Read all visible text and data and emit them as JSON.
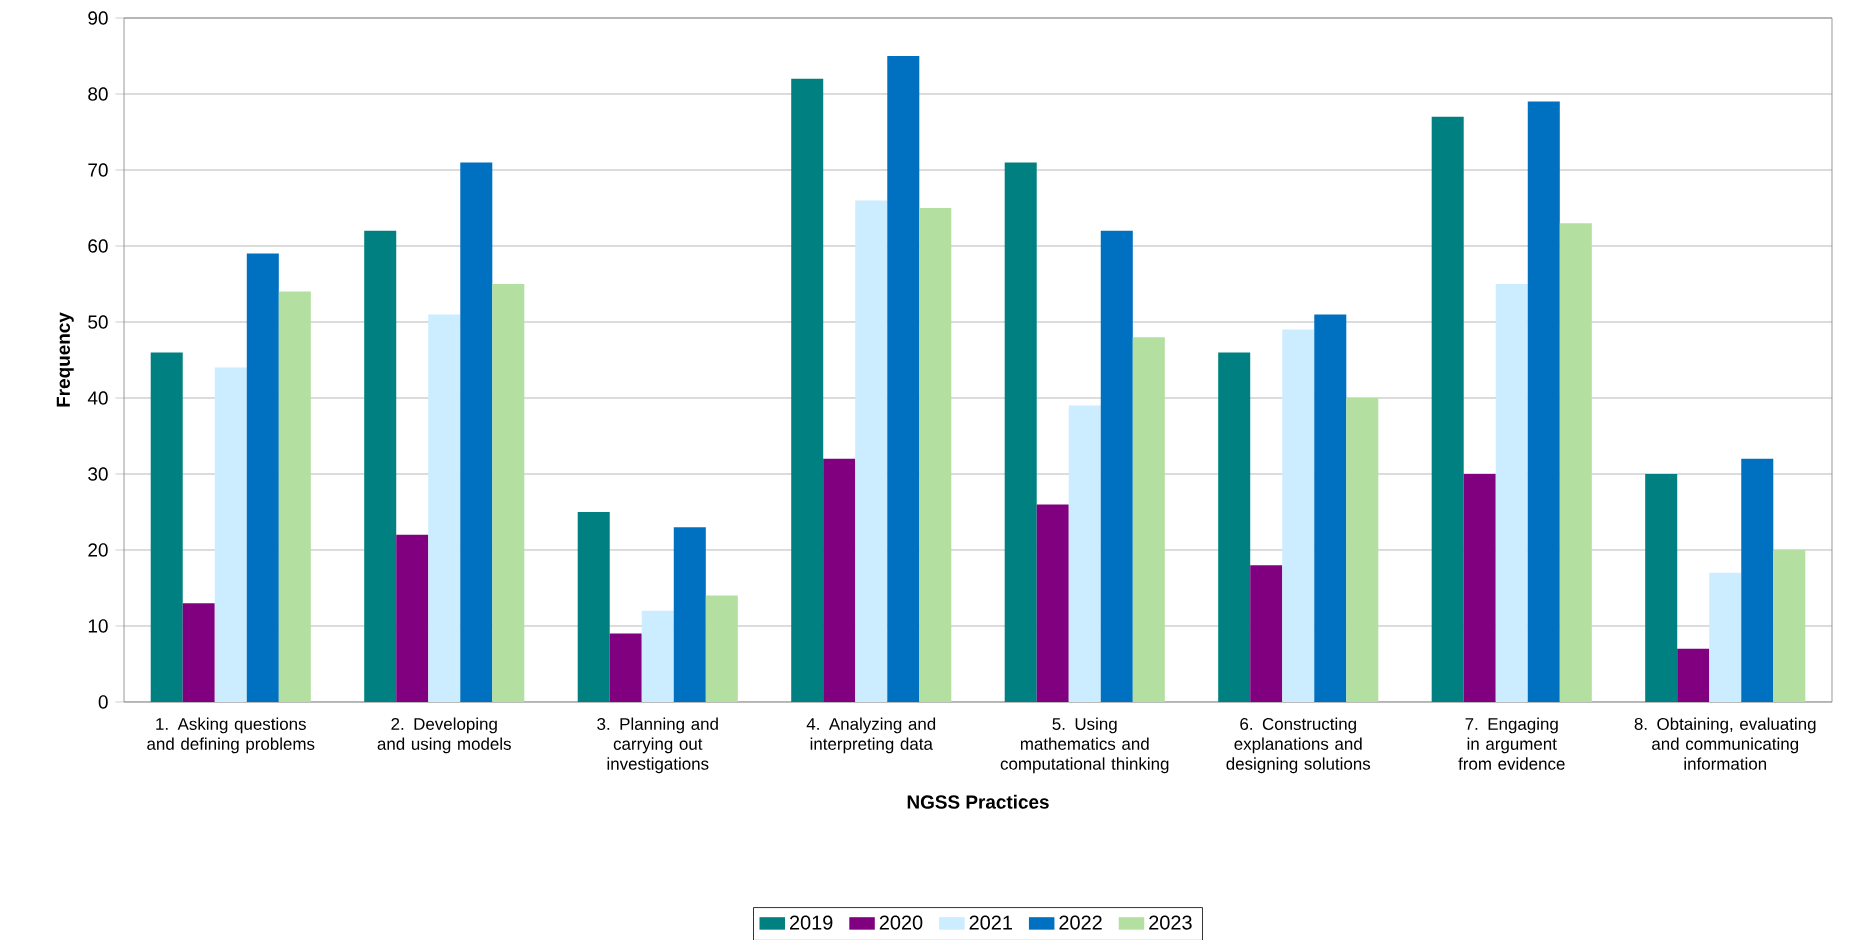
{
  "chart_data": {
    "type": "bar",
    "xlabel": "NGSS Practices",
    "ylabel": "Frequency",
    "categories": [
      "1. Asking questions and defining problems",
      "2. Developing and using models",
      "3. Planning and carrying out investigations",
      "4. Analyzing and interpreting data",
      "5. Using mathematics and computational thinking",
      "6. Constructing explanations and designing solutions",
      "7. Engaging in argument from evidence",
      "8. Obtaining, evaluating and communicating information"
    ],
    "series": [
      {
        "name": "2019",
        "color": "#008080",
        "values": [
          46,
          62,
          25,
          82,
          71,
          46,
          77,
          30
        ]
      },
      {
        "name": "2020",
        "color": "#800080",
        "values": [
          13,
          22,
          9,
          32,
          26,
          18,
          30,
          7
        ]
      },
      {
        "name": "2021",
        "color": "#ccecff",
        "values": [
          44,
          51,
          12,
          66,
          39,
          49,
          55,
          17
        ]
      },
      {
        "name": "2022",
        "color": "#0070c0",
        "values": [
          59,
          71,
          23,
          85,
          62,
          51,
          79,
          32
        ]
      },
      {
        "name": "2023",
        "color": "#b3e0a0",
        "values": [
          54,
          55,
          14,
          65,
          48,
          40,
          63,
          20
        ]
      }
    ],
    "ylim": [
      0,
      90
    ],
    "yticks": [
      0,
      10,
      20,
      30,
      40,
      50,
      60,
      70,
      80,
      90
    ],
    "grid": "y",
    "legend": "bottom"
  }
}
